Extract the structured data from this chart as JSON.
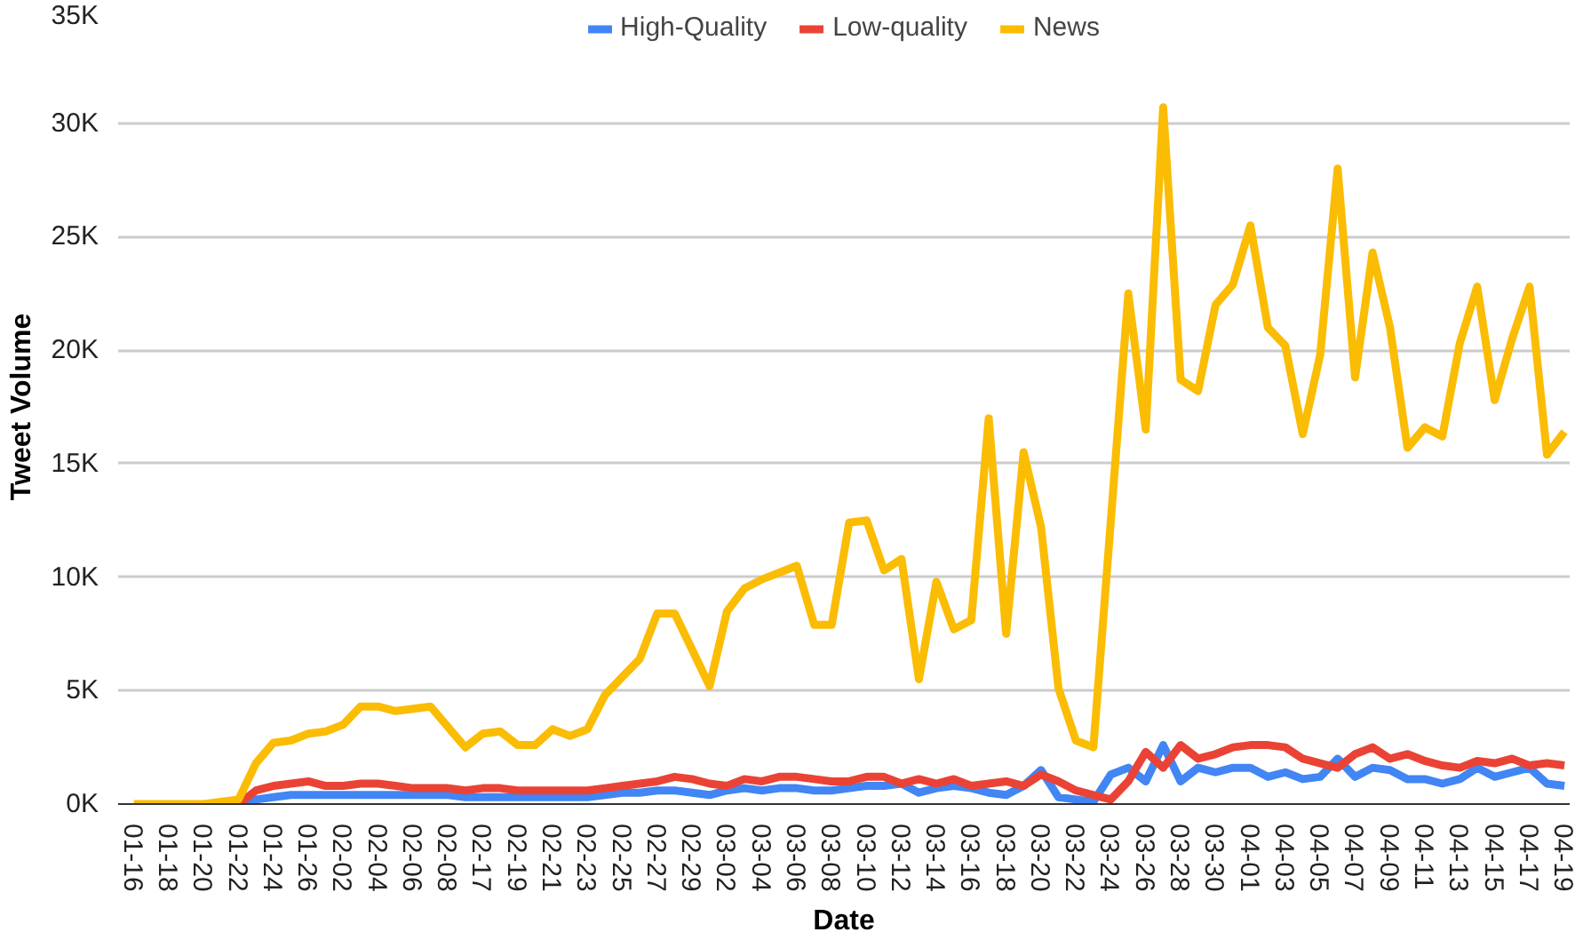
{
  "chart_data": {
    "type": "line",
    "xlabel": "Date",
    "ylabel": "Tweet Volume",
    "categories": [
      "01-16",
      null,
      "01-18",
      null,
      "01-20",
      null,
      "01-22",
      null,
      "01-24",
      null,
      "01-26",
      null,
      "02-02",
      null,
      "02-04",
      null,
      "02-06",
      null,
      "02-08",
      null,
      "02-17",
      null,
      "02-19",
      null,
      "02-21",
      null,
      "02-23",
      null,
      "02-25",
      null,
      "02-27",
      null,
      "02-29",
      null,
      "03-02",
      null,
      "03-04",
      null,
      "03-06",
      null,
      "03-08",
      null,
      "03-10",
      null,
      "03-12",
      null,
      "03-14",
      null,
      "03-16",
      null,
      "03-18",
      null,
      "03-20",
      null,
      "03-22",
      null,
      "03-24",
      null,
      "03-26",
      null,
      "03-28",
      null,
      "03-30",
      null,
      "04-01",
      null,
      "04-03",
      null,
      "04-05",
      null,
      "04-07",
      null,
      "04-09",
      null,
      "04-11",
      null,
      "04-13",
      null,
      "04-15",
      null,
      "04-17",
      null,
      "04-19"
    ],
    "series": [
      {
        "name": "High-Quality",
        "color": "#4285f4",
        "values": [
          null,
          null,
          null,
          null,
          null,
          null,
          0,
          200,
          300,
          400,
          400,
          400,
          400,
          400,
          400,
          400,
          400,
          400,
          400,
          300,
          300,
          300,
          300,
          300,
          300,
          300,
          300,
          400,
          500,
          500,
          600,
          600,
          500,
          400,
          600,
          700,
          600,
          700,
          700,
          600,
          600,
          700,
          800,
          800,
          900,
          500,
          700,
          800,
          700,
          500,
          400,
          800,
          1500,
          300,
          200,
          100,
          1300,
          1600,
          1000,
          2600,
          1000,
          1600,
          1400,
          1600,
          1600,
          1200,
          1400,
          1100,
          1200,
          2000,
          1200,
          1600,
          1500,
          1100,
          1100,
          900,
          1100,
          1600,
          1200,
          1400,
          1600,
          900,
          800
        ]
      },
      {
        "name": "Low-quality",
        "color": "#ea4335",
        "values": [
          null,
          null,
          null,
          null,
          null,
          null,
          0,
          600,
          800,
          900,
          1000,
          800,
          800,
          900,
          900,
          800,
          700,
          700,
          700,
          600,
          700,
          700,
          600,
          600,
          600,
          600,
          600,
          700,
          800,
          900,
          1000,
          1200,
          1100,
          900,
          800,
          1100,
          1000,
          1200,
          1200,
          1100,
          1000,
          1000,
          1200,
          1200,
          900,
          1100,
          900,
          1100,
          800,
          900,
          1000,
          800,
          1300,
          1000,
          600,
          400,
          200,
          1000,
          2300,
          1600,
          2600,
          2000,
          2200,
          2500,
          2600,
          2600,
          2500,
          2000,
          1800,
          1600,
          2200,
          2500,
          2000,
          2200,
          1900,
          1700,
          1600,
          1900,
          1800,
          2000,
          1700,
          1800,
          1700
        ]
      },
      {
        "name": "News",
        "color": "#fbbc04",
        "values": [
          0,
          0,
          0,
          0,
          0,
          100,
          200,
          1800,
          2700,
          2800,
          3100,
          3200,
          3500,
          4300,
          4300,
          4100,
          4200,
          4300,
          3400,
          2500,
          3100,
          3200,
          2600,
          2600,
          3300,
          3000,
          3300,
          4800,
          5600,
          6400,
          8400,
          8400,
          6800,
          5200,
          8500,
          9500,
          9900,
          10200,
          10500,
          7900,
          7900,
          12400,
          12500,
          10300,
          10800,
          5500,
          9800,
          7700,
          8100,
          17000,
          7500,
          15500,
          12200,
          5100,
          2800,
          2500,
          12500,
          22500,
          16500,
          30700,
          18700,
          18200,
          22000,
          22900,
          25500,
          21000,
          20200,
          16300,
          19800,
          28000,
          18800,
          24300,
          21000,
          15700,
          16600,
          16200,
          20300,
          22800,
          17800,
          20500,
          22800,
          15400,
          16400
        ]
      }
    ],
    "ylim": [
      0,
      35000
    ],
    "yticks": [
      {
        "value": 0,
        "label": "0K"
      },
      {
        "value": 5000,
        "label": "5K"
      },
      {
        "value": 10000,
        "label": "10K"
      },
      {
        "value": 15000,
        "label": "15K"
      },
      {
        "value": 20000,
        "label": "20K"
      },
      {
        "value": 25000,
        "label": "25K"
      },
      {
        "value": 30000,
        "label": "30K"
      },
      {
        "value": 35000,
        "label": "35K"
      }
    ],
    "grid": "y",
    "legend": "top",
    "line_style": "solid"
  }
}
